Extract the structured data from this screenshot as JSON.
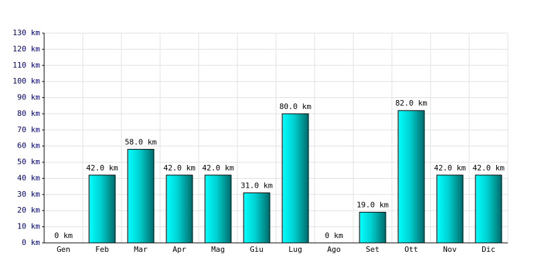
{
  "chart_data": {
    "type": "bar",
    "categories": [
      "Gen",
      "Feb",
      "Mar",
      "Apr",
      "Mag",
      "Giu",
      "Lug",
      "Ago",
      "Set",
      "Ott",
      "Nov",
      "Dic"
    ],
    "values": [
      0,
      42,
      58,
      42,
      42,
      31,
      80,
      0,
      19,
      82,
      42,
      42
    ],
    "value_labels": [
      "0 km",
      "42.0 km",
      "58.0 km",
      "42.0 km",
      "42.0 km",
      "31.0 km",
      "80.0 km",
      "0 km",
      "19.0 km",
      "82.0 km",
      "42.0 km",
      "42.0 km"
    ],
    "color": "#00d8d8",
    "ylim": [
      0,
      130
    ],
    "yticks": [
      {
        "value": 0,
        "label": "0 km"
      },
      {
        "value": 10,
        "label": "10 km"
      },
      {
        "value": 20,
        "label": "20 km"
      },
      {
        "value": 30,
        "label": "30 km"
      },
      {
        "value": 40,
        "label": "40 km"
      },
      {
        "value": 50,
        "label": "50 km"
      },
      {
        "value": 60,
        "label": "60 km"
      },
      {
        "value": 70,
        "label": "70 km"
      },
      {
        "value": 80,
        "label": "80 km"
      },
      {
        "value": 90,
        "label": "90 km"
      },
      {
        "value": 100,
        "label": "100 km"
      },
      {
        "value": 110,
        "label": "110 km"
      },
      {
        "value": 120,
        "label": "120 km"
      },
      {
        "value": 130,
        "label": "130 km"
      }
    ],
    "grid": true
  }
}
